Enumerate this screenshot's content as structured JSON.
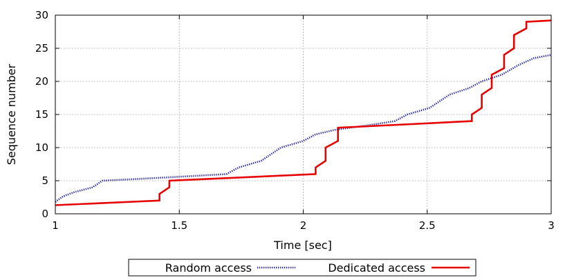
{
  "chart_data": {
    "type": "line",
    "xlabel": "Time [sec]",
    "ylabel": "Sequence number",
    "xlim": [
      1,
      3
    ],
    "ylim": [
      0,
      30
    ],
    "xticks": [
      1,
      1.5,
      2,
      2.5,
      3
    ],
    "xtick_labels": [
      "1",
      "1.5",
      "2",
      "2.5",
      "3"
    ],
    "yticks": [
      0,
      5,
      10,
      15,
      20,
      25,
      30
    ],
    "ytick_labels": [
      "0",
      "5",
      "10",
      "15",
      "20",
      "25",
      "30"
    ],
    "grid": true,
    "legend_position": "bottom-center",
    "colors": {
      "random": "#1f1fb4",
      "dedicated": "#e60000"
    },
    "series": [
      {
        "name": "Random access",
        "style": "dotted",
        "points": [
          [
            1.0,
            1.8
          ],
          [
            1.03,
            2.6
          ],
          [
            1.07,
            3.2
          ],
          [
            1.15,
            4.0
          ],
          [
            1.19,
            5.0
          ],
          [
            1.3,
            5.2
          ],
          [
            1.4,
            5.4
          ],
          [
            1.55,
            5.7
          ],
          [
            1.69,
            6.0
          ],
          [
            1.74,
            7.0
          ],
          [
            1.83,
            8.0
          ],
          [
            1.91,
            10.0
          ],
          [
            2.0,
            11.0
          ],
          [
            2.05,
            12.0
          ],
          [
            2.13,
            12.7
          ],
          [
            2.25,
            13.3
          ],
          [
            2.37,
            14.0
          ],
          [
            2.42,
            15.0
          ],
          [
            2.51,
            16.0
          ],
          [
            2.59,
            18.0
          ],
          [
            2.67,
            19.0
          ],
          [
            2.72,
            20.0
          ],
          [
            2.8,
            21.0
          ],
          [
            2.87,
            22.5
          ],
          [
            2.93,
            23.5
          ],
          [
            3.0,
            24.0
          ]
        ]
      },
      {
        "name": "Dedicated access",
        "style": "solid",
        "points": [
          [
            1.0,
            1.3
          ],
          [
            1.42,
            2.0
          ],
          [
            1.42,
            3.0
          ],
          [
            1.46,
            4.0
          ],
          [
            1.46,
            5.0
          ],
          [
            2.05,
            6.0
          ],
          [
            2.05,
            7.0
          ],
          [
            2.09,
            8.0
          ],
          [
            2.09,
            10.0
          ],
          [
            2.14,
            11.0
          ],
          [
            2.14,
            13.0
          ],
          [
            2.68,
            14.0
          ],
          [
            2.68,
            15.0
          ],
          [
            2.72,
            16.0
          ],
          [
            2.72,
            18.0
          ],
          [
            2.76,
            19.0
          ],
          [
            2.76,
            21.0
          ],
          [
            2.81,
            22.0
          ],
          [
            2.81,
            24.0
          ],
          [
            2.85,
            25.0
          ],
          [
            2.85,
            27.0
          ],
          [
            2.9,
            28.0
          ],
          [
            2.9,
            29.0
          ],
          [
            3.0,
            29.2
          ]
        ]
      }
    ]
  }
}
